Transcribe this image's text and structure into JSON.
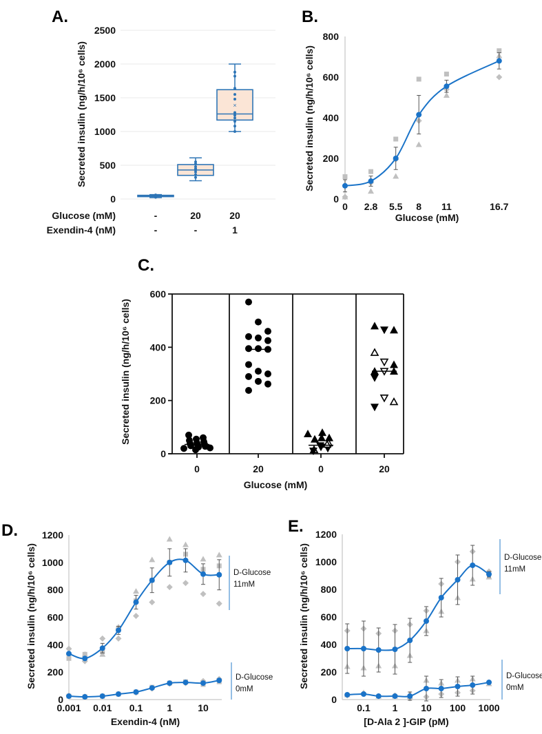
{
  "colors": {
    "series": "#1a73c8",
    "replicate": "#c0c0c0",
    "box_fill": "#fbe5d6",
    "box_stroke": "#2e75b6",
    "errorbar": "#555555",
    "grid": "#e8e8e8"
  },
  "chart_data": [
    {
      "id": "A",
      "panel_label": "A.",
      "type": "box",
      "ylabel": "Secreted insulin (ng/h/10⁶ cells)",
      "ylim": [
        0,
        2500
      ],
      "yticks": [
        "0",
        "500",
        "1000",
        "1500",
        "2000",
        "2500"
      ],
      "grid": true,
      "condition_rows": [
        {
          "label": "Glucose (mM)",
          "values": [
            "-",
            "20",
            "20"
          ]
        },
        {
          "label": "Exendin-4 (nM)",
          "values": [
            "-",
            "-",
            "1"
          ]
        }
      ],
      "boxes": [
        {
          "min": 20,
          "q1": 35,
          "median": 45,
          "q3": 55,
          "max": 65,
          "mean": 45,
          "points": [
            25,
            35,
            40,
            45,
            50,
            55,
            60
          ]
        },
        {
          "min": 270,
          "q1": 350,
          "median": 430,
          "q3": 510,
          "max": 610,
          "mean": 440,
          "points": [
            320,
            360,
            400,
            430,
            450,
            480,
            520,
            550
          ]
        },
        {
          "min": 1000,
          "q1": 1170,
          "median": 1260,
          "q3": 1620,
          "max": 2000,
          "mean": 1390,
          "points": [
            1000,
            1080,
            1150,
            1200,
            1240,
            1280,
            1480,
            1550,
            1640,
            1820,
            1880
          ]
        }
      ]
    },
    {
      "id": "B",
      "panel_label": "B.",
      "type": "line",
      "xlabel": "Glucose (mM)",
      "ylabel": "Secreted insulin (ng/h/10⁶ cells)",
      "ylim": [
        0,
        800
      ],
      "yticks": [
        "0",
        "200",
        "400",
        "600",
        "800"
      ],
      "x": [
        0,
        2.8,
        5.5,
        8,
        11,
        16.7
      ],
      "xticks": [
        "0",
        "2.8",
        "5.5",
        "8",
        "11",
        "16.7"
      ],
      "series": [
        {
          "name": "mean",
          "values": [
            65,
            88,
            200,
            415,
            555,
            680
          ],
          "error": [
            30,
            25,
            55,
            95,
            30,
            40
          ],
          "replicates": {
            "square": [
              110,
              135,
              295,
              590,
              615,
              730
            ],
            "triangle": [
              10,
              38,
              112,
              268,
              510,
              705
            ],
            "diamond": [
              10,
              80,
              195,
              385,
              540,
              600
            ]
          }
        }
      ]
    },
    {
      "id": "C",
      "panel_label": "C.",
      "type": "scatter",
      "xlabel": "Glucose (mM)",
      "ylabel": "Secreted insulin (ng/h/10⁶ cells)",
      "ylim": [
        0,
        600
      ],
      "yticks": [
        "0",
        "200",
        "400",
        "600"
      ],
      "categories": [
        "0",
        "20",
        "0",
        "20"
      ],
      "groups": [
        {
          "marker": "circle",
          "median": 35,
          "points": [
            [
              20,
              "c"
            ],
            [
              25,
              "c"
            ],
            [
              28,
              "c"
            ],
            [
              30,
              "c"
            ],
            [
              33,
              "c"
            ],
            [
              35,
              "c"
            ],
            [
              38,
              "c"
            ],
            [
              40,
              "c"
            ],
            [
              45,
              "c"
            ],
            [
              50,
              "c"
            ],
            [
              55,
              "c"
            ],
            [
              60,
              "c"
            ],
            [
              70,
              "c"
            ],
            [
              15,
              "c"
            ],
            [
              22,
              "c"
            ]
          ]
        },
        {
          "marker": "circle",
          "median": 392,
          "points": [
            [
              570,
              "c"
            ],
            [
              495,
              "c"
            ],
            [
              460,
              "c"
            ],
            [
              440,
              "c"
            ],
            [
              435,
              "c"
            ],
            [
              425,
              "c"
            ],
            [
              395,
              "c"
            ],
            [
              395,
              "c"
            ],
            [
              392,
              "c"
            ],
            [
              335,
              "c"
            ],
            [
              310,
              "c"
            ],
            [
              300,
              "c"
            ],
            [
              290,
              "c"
            ],
            [
              272,
              "c"
            ],
            [
              262,
              "c"
            ],
            [
              238,
              "c"
            ]
          ]
        },
        {
          "marker": "triangle",
          "median": 32,
          "points": [
            [
              75,
              "u"
            ],
            [
              80,
              "u"
            ],
            [
              60,
              "u"
            ],
            [
              55,
              "u"
            ],
            [
              60,
              "u"
            ],
            [
              40,
              "o"
            ],
            [
              15,
              "o"
            ],
            [
              25,
              "d"
            ],
            [
              20,
              "d"
            ],
            [
              10,
              "d"
            ],
            [
              30,
              "d"
            ],
            [
              35,
              "o"
            ]
          ]
        },
        {
          "marker": "triangle",
          "median": 310,
          "points": [
            [
              480,
              "u"
            ],
            [
              465,
              "d"
            ],
            [
              465,
              "u"
            ],
            [
              380,
              "o"
            ],
            [
              345,
              "v"
            ],
            [
              335,
              "u"
            ],
            [
              310,
              "u"
            ],
            [
              310,
              "v"
            ],
            [
              310,
              "u"
            ],
            [
              285,
              "d"
            ],
            [
              210,
              "v"
            ],
            [
              195,
              "o"
            ],
            [
              175,
              "d"
            ]
          ]
        }
      ]
    },
    {
      "id": "D",
      "panel_label": "D.",
      "type": "line",
      "xlabel": "Exendin-4 (nM)",
      "ylabel": "Secreted insulin (ng/h/10⁶ cells)",
      "xscale": "log",
      "x": [
        0.001,
        0.003,
        0.01,
        0.03,
        0.1,
        0.3,
        1,
        3,
        10,
        30
      ],
      "xticks": [
        "0.001",
        "0.01",
        "0.1",
        "1",
        "10"
      ],
      "xtick_values": [
        0.001,
        0.01,
        0.1,
        1,
        10
      ],
      "ylim": [
        0,
        1200
      ],
      "yticks": [
        "0",
        "200",
        "400",
        "600",
        "800",
        "1000",
        "1200"
      ],
      "series": [
        {
          "name": "D-Glucose 11mM",
          "label_lines": [
            "D-Glucose",
            "11mM"
          ],
          "values": [
            335,
            300,
            375,
            505,
            710,
            870,
            1000,
            1015,
            915,
            910
          ],
          "error": [
            0,
            0,
            35,
            30,
            50,
            90,
            100,
            85,
            75,
            110
          ],
          "replicates": {
            "triangle": [
              340,
              330,
              330,
              530,
              790,
              1020,
              1170,
              1130,
              1025,
              1055
            ],
            "square": [
              300,
              330,
              350,
              520,
              720,
              870,
              1000,
              1060,
              950,
              975
            ],
            "diamond": [
              370,
              280,
              445,
              445,
              610,
              710,
              820,
              850,
              770,
              700
            ]
          }
        },
        {
          "name": "D-Glucose 0mM",
          "label_lines": [
            "D-Glucose",
            "0mM"
          ],
          "values": [
            25,
            20,
            25,
            40,
            55,
            85,
            120,
            125,
            120,
            140
          ],
          "error": [
            0,
            0,
            0,
            0,
            0,
            0,
            0,
            0,
            0,
            0
          ],
          "replicates": {
            "square": [
              25,
              20,
              25,
              40,
              55,
              90,
              120,
              130,
              110,
              130
            ],
            "diamond": [
              30,
              22,
              25,
              40,
              50,
              80,
              115,
              120,
              135,
              150
            ]
          }
        }
      ]
    },
    {
      "id": "E",
      "panel_label": "E.",
      "type": "line",
      "xlabel": "[D-Ala 2 ]-GIP (pM)",
      "ylabel": "Secreted insulin (ng/h/10⁶ cells)",
      "xscale": "log",
      "x": [
        0.03,
        0.1,
        0.3,
        1,
        3,
        10,
        30,
        100,
        300,
        1000
      ],
      "xticks": [
        "0.1",
        "1",
        "10",
        "100",
        "1000"
      ],
      "xtick_values": [
        0.1,
        1,
        10,
        100,
        1000
      ],
      "ylim": [
        0,
        1200
      ],
      "yticks": [
        "0",
        "200",
        "400",
        "600",
        "800",
        "1000",
        "1200"
      ],
      "series": [
        {
          "name": "D-Glucose 11mM",
          "label_lines": [
            "D-Glucose",
            "11mM"
          ],
          "values": [
            370,
            370,
            360,
            365,
            430,
            570,
            740,
            870,
            975,
            910
          ],
          "error": [
            180,
            200,
            160,
            180,
            160,
            105,
            140,
            180,
            145,
            20
          ],
          "replicates": {
            "triangle": [
              240,
              230,
              245,
              245,
              320,
              500,
              640,
              740,
              875,
              890
            ],
            "diamond": [
              500,
              515,
              480,
              500,
              545,
              645,
              840,
              1000,
              1075,
              930
            ]
          }
        },
        {
          "name": "D-Glucose 0mM",
          "label_lines": [
            "D-Glucose",
            "0mM"
          ],
          "values": [
            35,
            40,
            25,
            25,
            25,
            80,
            80,
            95,
            105,
            125
          ],
          "error": [
            0,
            0,
            0,
            0,
            30,
            90,
            65,
            70,
            65,
            10
          ],
          "replicates": {
            "triangle": [
              35,
              50,
              25,
              25,
              40,
              140,
              120,
              140,
              150,
              115
            ],
            "diamond": [
              30,
              45,
              25,
              30,
              10,
              20,
              40,
              50,
              65,
              125
            ]
          }
        }
      ]
    }
  ]
}
